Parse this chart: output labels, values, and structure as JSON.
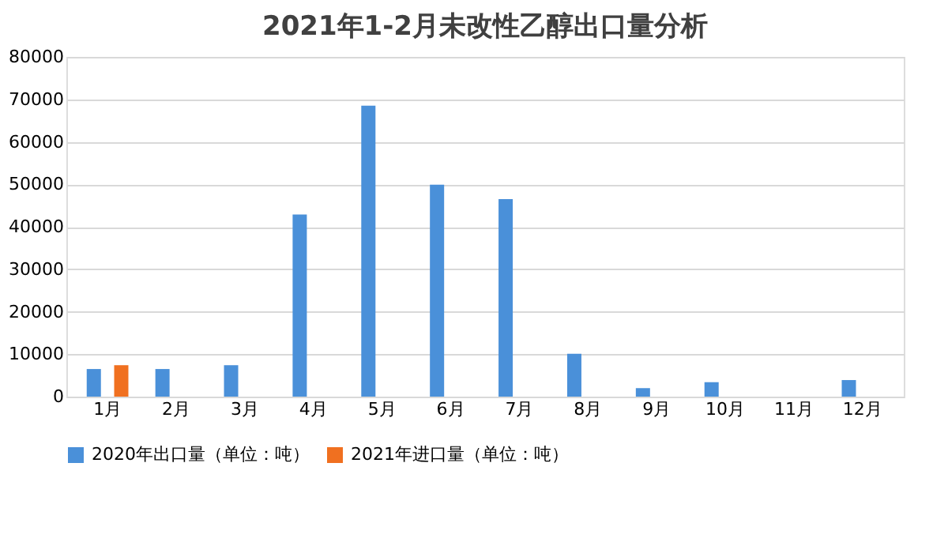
{
  "chart_data": {
    "type": "bar",
    "title": "2021年1-2月未改性乙醇出口量分析",
    "categories": [
      "1月",
      "2月",
      "3月",
      "4月",
      "5月",
      "6月",
      "7月",
      "8月",
      "9月",
      "10月",
      "11月",
      "12月"
    ],
    "series": [
      {
        "name": "2020年出口量（单位：吨）",
        "color": "#4a90d9",
        "values": [
          6500,
          6500,
          7400,
          42900,
          68500,
          49900,
          46500,
          10100,
          2000,
          3400,
          null,
          3900
        ]
      },
      {
        "name": "2021年进口量（单位：吨）",
        "color": "#f07020",
        "values": [
          7400,
          null,
          null,
          null,
          null,
          null,
          null,
          null,
          null,
          null,
          null,
          null
        ]
      }
    ],
    "ylim": [
      0,
      80000
    ],
    "yticks": [
      0,
      10000,
      20000,
      30000,
      40000,
      50000,
      60000,
      70000,
      80000
    ],
    "grid": "y",
    "legend": "bottom"
  }
}
